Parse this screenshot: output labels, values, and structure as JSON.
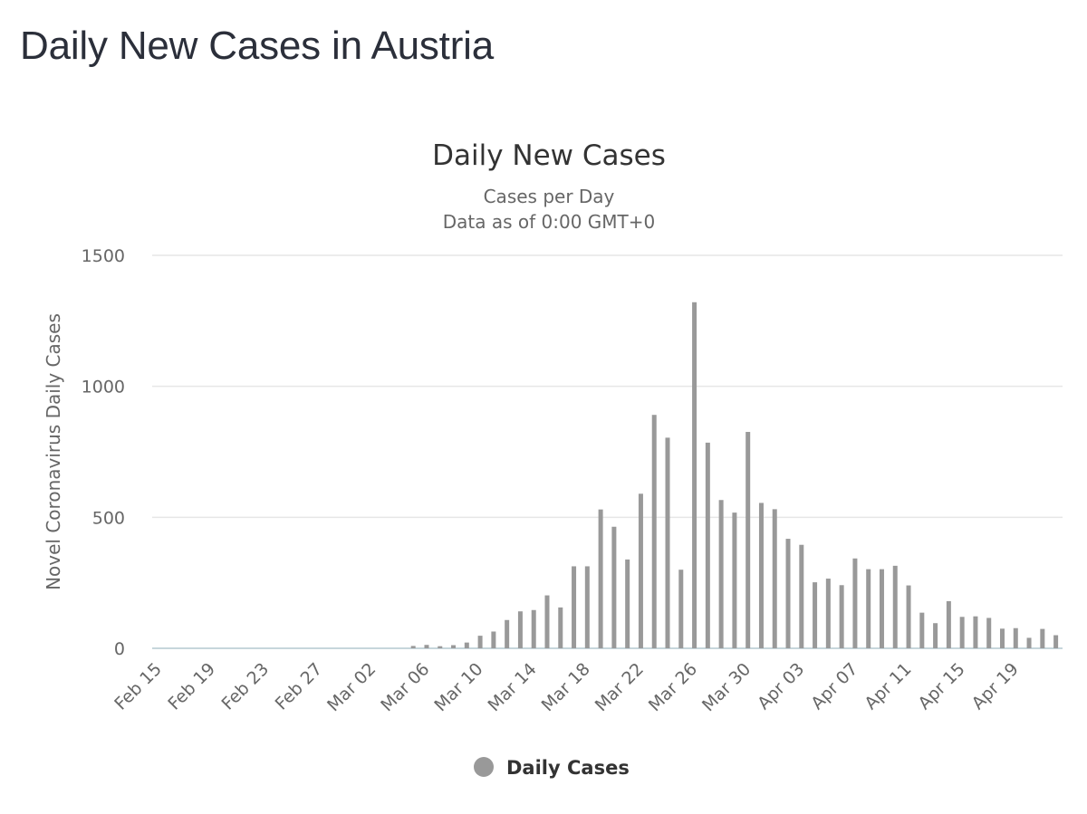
{
  "page_title": "Daily New Cases in Austria",
  "colors": {
    "bar": "#999999",
    "title": "#333333",
    "text": "#666666",
    "grid": "#e6e6e6"
  },
  "chart_data": {
    "type": "bar",
    "title": "Daily New Cases",
    "subtitle": "Cases per Day",
    "subtitle2": "Data as of 0:00 GMT+0",
    "ylabel": "Novel Coronavirus Daily Cases",
    "xlabel": "",
    "ylim": [
      0,
      1500
    ],
    "y_ticks": [
      0,
      500,
      1000,
      1500
    ],
    "grid": true,
    "legend_position": "bottom",
    "categories": [
      "Feb 15",
      "Feb 16",
      "Feb 17",
      "Feb 18",
      "Feb 19",
      "Feb 20",
      "Feb 21",
      "Feb 22",
      "Feb 23",
      "Feb 24",
      "Feb 25",
      "Feb 26",
      "Feb 27",
      "Feb 28",
      "Feb 29",
      "Mar 01",
      "Mar 02",
      "Mar 03",
      "Mar 04",
      "Mar 05",
      "Mar 06",
      "Mar 07",
      "Mar 08",
      "Mar 09",
      "Mar 10",
      "Mar 11",
      "Mar 12",
      "Mar 13",
      "Mar 14",
      "Mar 15",
      "Mar 16",
      "Mar 17",
      "Mar 18",
      "Mar 19",
      "Mar 20",
      "Mar 21",
      "Mar 22",
      "Mar 23",
      "Mar 24",
      "Mar 25",
      "Mar 26",
      "Mar 27",
      "Mar 28",
      "Mar 29",
      "Mar 30",
      "Mar 31",
      "Apr 01",
      "Apr 02",
      "Apr 03",
      "Apr 04",
      "Apr 05",
      "Apr 06",
      "Apr 07",
      "Apr 08",
      "Apr 09",
      "Apr 10",
      "Apr 11",
      "Apr 12",
      "Apr 13",
      "Apr 14",
      "Apr 15",
      "Apr 16",
      "Apr 17",
      "Apr 18",
      "Apr 19",
      "Apr 20",
      "Apr 21",
      "Apr 22"
    ],
    "x_tick_labels": [
      "Feb 15",
      "Feb 19",
      "Feb 23",
      "Feb 27",
      "Mar 02",
      "Mar 06",
      "Mar 10",
      "Mar 14",
      "Mar 18",
      "Mar 22",
      "Mar 26",
      "Mar 30",
      "Apr 03",
      "Apr 07",
      "Apr 11",
      "Apr 15",
      "Apr 19"
    ],
    "series": [
      {
        "name": "Daily Cases",
        "values": [
          0,
          0,
          0,
          0,
          0,
          0,
          0,
          0,
          0,
          0,
          0,
          0,
          0,
          0,
          0,
          0,
          0,
          0,
          0,
          9,
          13,
          8,
          12,
          22,
          48,
          64,
          108,
          141,
          146,
          202,
          156,
          313,
          313,
          530,
          464,
          339,
          590,
          891,
          804,
          300,
          1321,
          785,
          566,
          518,
          826,
          555,
          531,
          418,
          395,
          252,
          266,
          241,
          343,
          302,
          302,
          315,
          240,
          136,
          96,
          180,
          120,
          122,
          116,
          75,
          77,
          40,
          74,
          50
        ]
      }
    ],
    "legend": [
      {
        "name": "Daily Cases",
        "color": "#999999"
      }
    ]
  }
}
